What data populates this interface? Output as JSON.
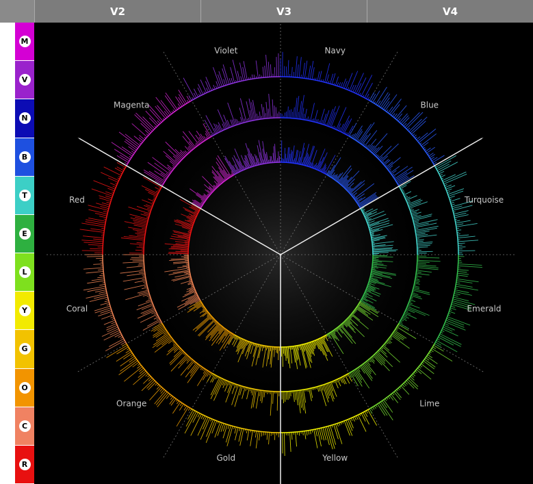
{
  "header": {
    "columns": [
      "V2",
      "V3",
      "V4"
    ]
  },
  "sidebar": [
    {
      "letter": "M",
      "color": "#d400d4"
    },
    {
      "letter": "V",
      "color": "#9a22cc"
    },
    {
      "letter": "N",
      "color": "#0c0cb4"
    },
    {
      "letter": "B",
      "color": "#1e50e0"
    },
    {
      "letter": "T",
      "color": "#3ccfc6"
    },
    {
      "letter": "E",
      "color": "#2eb040"
    },
    {
      "letter": "L",
      "color": "#7ee01e"
    },
    {
      "letter": "Y",
      "color": "#f2ea00"
    },
    {
      "letter": "G",
      "color": "#f2c200"
    },
    {
      "letter": "O",
      "color": "#f29400"
    },
    {
      "letter": "C",
      "color": "#f08262"
    },
    {
      "letter": "R",
      "color": "#e81010"
    }
  ],
  "wheel": {
    "sectors": [
      {
        "label": "Navy",
        "color": "#2233ff"
      },
      {
        "label": "Blue",
        "color": "#2a5cff"
      },
      {
        "label": "Turquoise",
        "color": "#44d8d0"
      },
      {
        "label": "Emerald",
        "color": "#34c24e"
      },
      {
        "label": "Lime",
        "color": "#78e232"
      },
      {
        "label": "Yellow",
        "color": "#f2f200"
      },
      {
        "label": "Gold",
        "color": "#f2c800"
      },
      {
        "label": "Orange",
        "color": "#f2a000"
      },
      {
        "label": "Coral",
        "color": "#f08454"
      },
      {
        "label": "Red",
        "color": "#f01414"
      },
      {
        "label": "Magenta",
        "color": "#d424d4"
      },
      {
        "label": "Violet",
        "color": "#9034e4"
      }
    ]
  }
}
